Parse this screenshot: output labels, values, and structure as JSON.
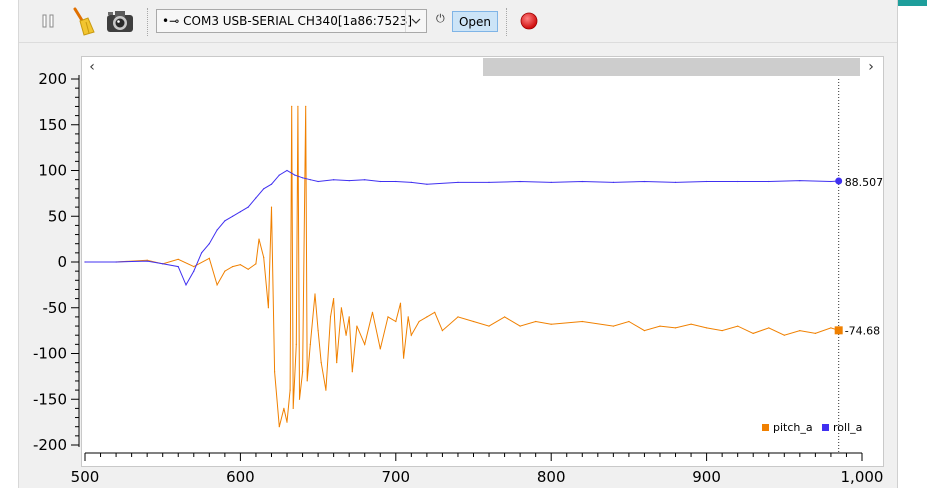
{
  "toolbar": {
    "port_label": "COM3 USB-SERIAL CH340[1a86:7523]",
    "open_label": "Open",
    "plug_glyph": "⏻"
  },
  "icons": [
    "pause-icon",
    "broom-icon",
    "camera-icon",
    "usb-icon",
    "chevron-down-icon",
    "plug-icon",
    "record-icon",
    "scroll-left-icon",
    "scroll-right-icon"
  ],
  "colors": {
    "pitch_a": "#f08000",
    "roll_a": "#4030f0",
    "record": "#e02020"
  },
  "readouts": {
    "roll_value": "88.507",
    "pitch_value": "-74.68"
  },
  "chart_data": {
    "type": "line",
    "xlim": [
      500,
      1000
    ],
    "ylim": [
      -200,
      200
    ],
    "xticks": [
      "500",
      "600",
      "700",
      "800",
      "900",
      "1,000"
    ],
    "yticks": [
      "200",
      "150",
      "100",
      "50",
      "0",
      "-50",
      "-100",
      "-150",
      "-200"
    ],
    "legend": "bottom-right",
    "cursor_x": 985,
    "series": [
      {
        "name": "pitch_a",
        "color": "#f08000",
        "points": [
          [
            500,
            0
          ],
          [
            520,
            0
          ],
          [
            540,
            2
          ],
          [
            550,
            -2
          ],
          [
            560,
            3
          ],
          [
            570,
            -5
          ],
          [
            580,
            4
          ],
          [
            585,
            -25
          ],
          [
            590,
            -10
          ],
          [
            595,
            -5
          ],
          [
            600,
            -3
          ],
          [
            605,
            -8
          ],
          [
            610,
            -2
          ],
          [
            612,
            25
          ],
          [
            615,
            5
          ],
          [
            618,
            -50
          ],
          [
            620,
            60
          ],
          [
            622,
            -120
          ],
          [
            625,
            -180
          ],
          [
            628,
            -160
          ],
          [
            630,
            -175
          ],
          [
            632,
            -140
          ],
          [
            633,
            170
          ],
          [
            634,
            -160
          ],
          [
            636,
            -90
          ],
          [
            637,
            170
          ],
          [
            638,
            -150
          ],
          [
            640,
            -120
          ],
          [
            642,
            170
          ],
          [
            643,
            -130
          ],
          [
            645,
            -90
          ],
          [
            648,
            -35
          ],
          [
            650,
            -75
          ],
          [
            652,
            -110
          ],
          [
            655,
            -140
          ],
          [
            658,
            -60
          ],
          [
            660,
            -40
          ],
          [
            662,
            -110
          ],
          [
            665,
            -50
          ],
          [
            668,
            -80
          ],
          [
            670,
            -60
          ],
          [
            672,
            -120
          ],
          [
            675,
            -70
          ],
          [
            680,
            -90
          ],
          [
            685,
            -55
          ],
          [
            690,
            -95
          ],
          [
            695,
            -60
          ],
          [
            700,
            -65
          ],
          [
            703,
            -45
          ],
          [
            705,
            -105
          ],
          [
            708,
            -60
          ],
          [
            710,
            -80
          ],
          [
            715,
            -65
          ],
          [
            720,
            -60
          ],
          [
            725,
            -55
          ],
          [
            730,
            -75
          ],
          [
            740,
            -60
          ],
          [
            750,
            -65
          ],
          [
            760,
            -70
          ],
          [
            770,
            -60
          ],
          [
            780,
            -70
          ],
          [
            790,
            -65
          ],
          [
            800,
            -68
          ],
          [
            820,
            -65
          ],
          [
            840,
            -70
          ],
          [
            850,
            -65
          ],
          [
            860,
            -75
          ],
          [
            870,
            -70
          ],
          [
            880,
            -72
          ],
          [
            890,
            -68
          ],
          [
            900,
            -72
          ],
          [
            910,
            -75
          ],
          [
            920,
            -70
          ],
          [
            930,
            -78
          ],
          [
            940,
            -72
          ],
          [
            950,
            -80
          ],
          [
            960,
            -75
          ],
          [
            970,
            -78
          ],
          [
            980,
            -72
          ],
          [
            985,
            -74.68
          ]
        ]
      },
      {
        "name": "roll_a",
        "color": "#4030f0",
        "points": [
          [
            500,
            0
          ],
          [
            520,
            0
          ],
          [
            540,
            1
          ],
          [
            550,
            -2
          ],
          [
            560,
            -5
          ],
          [
            565,
            -25
          ],
          [
            570,
            -10
          ],
          [
            575,
            10
          ],
          [
            580,
            20
          ],
          [
            585,
            35
          ],
          [
            590,
            45
          ],
          [
            595,
            50
          ],
          [
            600,
            55
          ],
          [
            605,
            60
          ],
          [
            610,
            70
          ],
          [
            615,
            80
          ],
          [
            620,
            85
          ],
          [
            625,
            95
          ],
          [
            630,
            100
          ],
          [
            635,
            95
          ],
          [
            640,
            92
          ],
          [
            645,
            90
          ],
          [
            650,
            88
          ],
          [
            660,
            90
          ],
          [
            670,
            89
          ],
          [
            680,
            90
          ],
          [
            690,
            88
          ],
          [
            700,
            88
          ],
          [
            710,
            87
          ],
          [
            720,
            85
          ],
          [
            740,
            87
          ],
          [
            760,
            87
          ],
          [
            780,
            88
          ],
          [
            800,
            87
          ],
          [
            820,
            88
          ],
          [
            840,
            87
          ],
          [
            860,
            88
          ],
          [
            880,
            87
          ],
          [
            900,
            88
          ],
          [
            920,
            88
          ],
          [
            940,
            88
          ],
          [
            960,
            89
          ],
          [
            980,
            88
          ],
          [
            985,
            88.507
          ]
        ]
      }
    ]
  }
}
